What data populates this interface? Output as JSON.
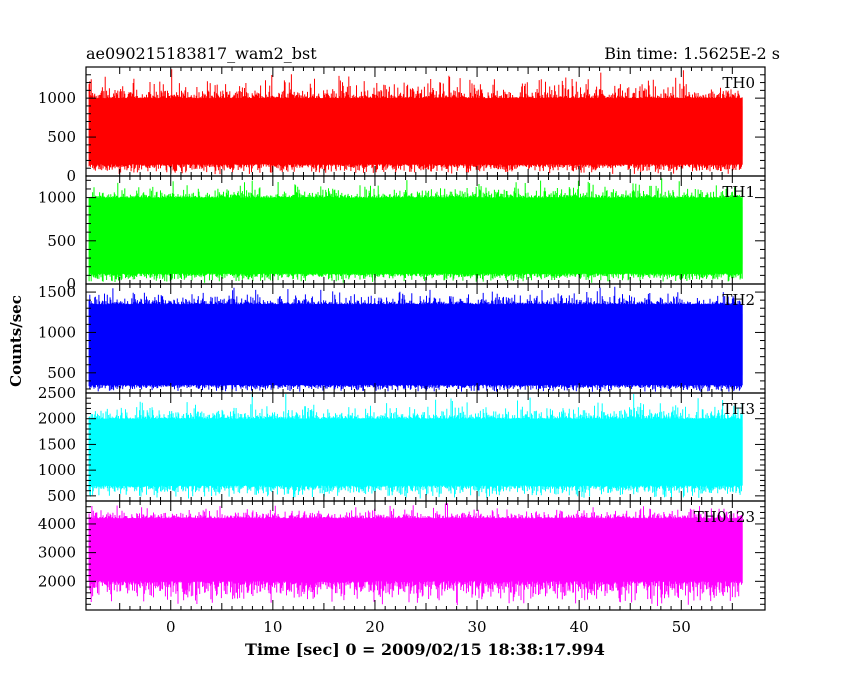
{
  "header": {
    "title_left": "ae090215183817_wam2_bst",
    "title_right": "Bin time: 1.5625E-2 s"
  },
  "chart_data": {
    "type": "line",
    "title": "ae090215183817_wam2_bst",
    "subtitle": "Bin time: 1.5625E-2 s",
    "xlabel": "Time [sec] 0 = 2009/02/15 18:38:17.994",
    "ylabel": "Counts/sec",
    "xlim": [
      -8.3,
      58.2
    ],
    "x_range_of_data": [
      -8.0,
      56.0
    ],
    "xticks": [
      0,
      10,
      20,
      30,
      40,
      50
    ],
    "grid": false,
    "legend": "none",
    "panels": [
      {
        "name": "TH0",
        "color": "#ff0000",
        "ylim": [
          0,
          1400
        ],
        "yticks": [
          0,
          500,
          1000
        ],
        "band": [
          150,
          1000
        ],
        "spike_min": 0,
        "spike_max": 1400
      },
      {
        "name": "TH1",
        "color": "#00ff00",
        "ylim": [
          0,
          1250
        ],
        "yticks": [
          0,
          500,
          1000
        ],
        "band": [
          120,
          1000
        ],
        "spike_min": 0,
        "spike_max": 1250
      },
      {
        "name": "TH2",
        "color": "#0000ff",
        "ylim": [
          250,
          1600
        ],
        "yticks": [
          500,
          1000,
          1500
        ],
        "band": [
          350,
          1350
        ],
        "spike_min": 250,
        "spike_max": 1600
      },
      {
        "name": "TH3",
        "color": "#00ffff",
        "ylim": [
          400,
          2500
        ],
        "yticks": [
          500,
          1000,
          1500,
          2000,
          2500
        ],
        "band": [
          700,
          2000
        ],
        "spike_min": 400,
        "spike_max": 2500
      },
      {
        "name": "TH0123",
        "color": "#ff00ff",
        "ylim": [
          1000,
          4800
        ],
        "yticks": [
          2000,
          3000,
          4000
        ],
        "band": [
          2000,
          4200
        ],
        "spike_min": 1000,
        "spike_max": 4800
      }
    ]
  }
}
